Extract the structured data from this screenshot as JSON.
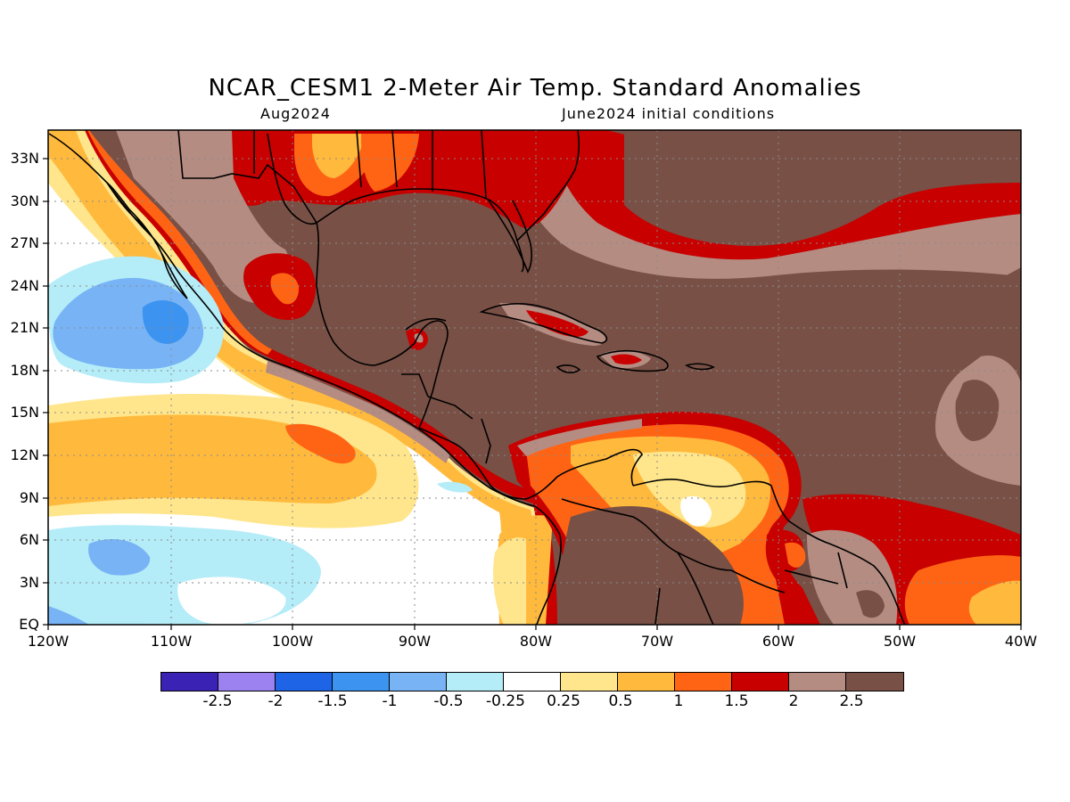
{
  "title": "NCAR_CESM1 2-Meter Air Temp. Standard Anomalies",
  "subtitle_left": "Aug2024",
  "subtitle_right": "June2024 initial conditions",
  "y_ticks": [
    "33N",
    "30N",
    "27N",
    "24N",
    "21N",
    "18N",
    "15N",
    "12N",
    "9N",
    "6N",
    "3N",
    "EQ"
  ],
  "x_ticks": [
    "120W",
    "110W",
    "100W",
    "90W",
    "80W",
    "70W",
    "60W",
    "50W",
    "40W"
  ],
  "legend": {
    "colors": [
      "#3a22b4",
      "#9b82f0",
      "#1e64e6",
      "#3c94f0",
      "#78b4f5",
      "#b4ecf8",
      "#ffffff",
      "#ffe68c",
      "#ffb93c",
      "#ff6414",
      "#c80000",
      "#b48c82",
      "#785046"
    ],
    "labels": [
      "-2.5",
      "-2",
      "-1.5",
      "-1",
      "-0.5",
      "-0.25",
      "0.25",
      "0.5",
      "1",
      "1.5",
      "2",
      "2.5"
    ]
  },
  "colors": {
    "very_warm": "#785046",
    "warm_mauve": "#b48c82",
    "dark_red": "#c80000",
    "orange_red": "#ff6414",
    "orange": "#ffb93c",
    "light_yellow": "#ffe68c",
    "neutral": "#ffffff",
    "light_cyan": "#b4ecf8",
    "light_blue": "#78b4f5",
    "blue": "#3c94f0"
  }
}
